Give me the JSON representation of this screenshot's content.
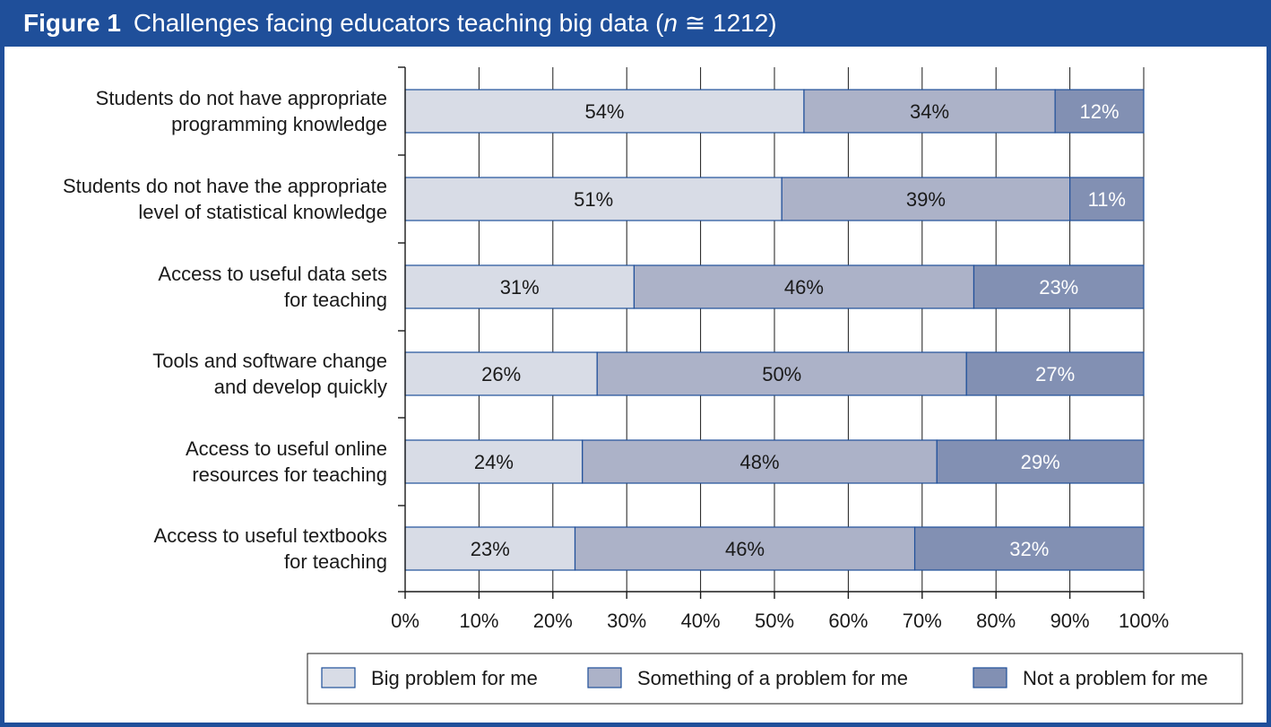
{
  "figure": {
    "label": "Figure 1",
    "title_main": "Challenges facing educators teaching big data (",
    "title_n": "n",
    "title_rest": " ≅ 1212)"
  },
  "colors": {
    "frame": "#1f4f9a",
    "big": "#d8dce6",
    "something": "#acb2c8",
    "not": "#8290b3",
    "stroke": "#1f4f9a"
  },
  "chart_data": {
    "type": "bar",
    "orientation": "horizontal",
    "stacked": true,
    "categories": [
      [
        "Students do not have appropriate",
        "programming knowledge"
      ],
      [
        "Students do not have the appropriate",
        "level of statistical knowledge"
      ],
      [
        "Access to useful data sets",
        "for teaching"
      ],
      [
        "Tools and software change",
        "and develop quickly"
      ],
      [
        "Access to useful online",
        "resources for teaching"
      ],
      [
        "Access to useful textbooks",
        "for teaching"
      ]
    ],
    "series": [
      {
        "name": "Big problem for me",
        "values": [
          54,
          51,
          31,
          26,
          24,
          23
        ],
        "labels": [
          "54%",
          "51%",
          "31%",
          "26%",
          "24%",
          "23%"
        ]
      },
      {
        "name": "Something of a problem for me",
        "values": [
          34,
          39,
          46,
          50,
          48,
          46
        ],
        "labels": [
          "34%",
          "39%",
          "46%",
          "50%",
          "48%",
          "46%"
        ]
      },
      {
        "name": "Not a problem for me",
        "values": [
          12,
          11,
          23,
          27,
          29,
          32
        ],
        "labels": [
          "12%",
          "11%",
          "23%",
          "27%",
          "29%",
          "32%"
        ]
      }
    ],
    "xlim": [
      0,
      100
    ],
    "xticks": [
      "0%",
      "10%",
      "20%",
      "30%",
      "40%",
      "50%",
      "60%",
      "70%",
      "80%",
      "90%",
      "100%"
    ],
    "grid": true,
    "legend": "bottom-right"
  }
}
